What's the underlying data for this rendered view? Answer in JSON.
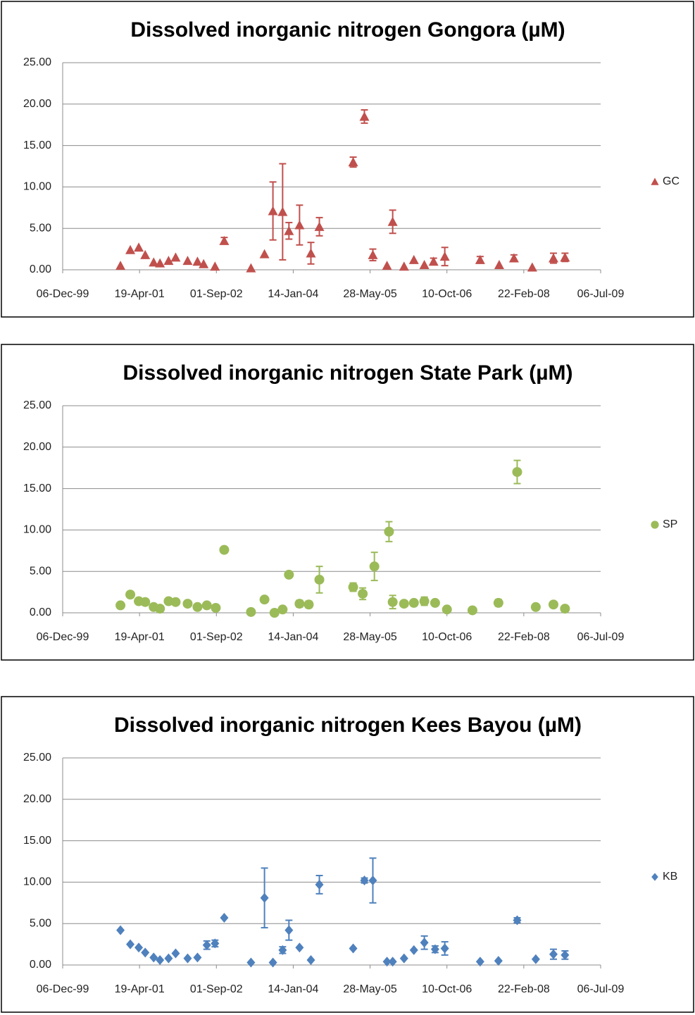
{
  "chart_data": [
    {
      "type": "scatter",
      "title": "Dissolved inorganic nitrogen Gongora (µM)",
      "x": [
        "2000-12-16",
        "2001-02-18",
        "2001-04-14",
        "2001-05-26",
        "2001-07-20",
        "2001-08-30",
        "2001-10-25",
        "2001-12-10",
        "2002-02-26",
        "2002-05-01",
        "2002-06-10",
        "2002-08-23",
        "2002-10-22",
        "2003-04-14",
        "2003-07-11",
        "2003-09-04",
        "2003-11-06",
        "2003-12-17",
        "2004-02-24",
        "2004-05-08",
        "2004-07-02",
        "2005-02-07",
        "2005-04-21",
        "2005-06-15",
        "2005-09-15",
        "2005-10-22",
        "2006-01-04",
        "2006-03-09",
        "2006-05-16",
        "2006-07-15",
        "2006-09-26",
        "2007-05-14",
        "2007-09-15",
        "2007-12-20",
        "2008-04-17",
        "2008-09-02",
        "2008-11-16"
      ],
      "series": [
        {
          "name": "GC",
          "color": "#c0504d",
          "marker": "triangle",
          "values": [
            0.5,
            2.4,
            2.7,
            1.8,
            0.9,
            0.8,
            1.1,
            1.5,
            1.1,
            1.0,
            0.7,
            0.4,
            3.5,
            0.2,
            1.9,
            7.1,
            7.0,
            4.7,
            5.4,
            2.0,
            5.2,
            13.0,
            18.5,
            1.8,
            0.5,
            5.8,
            0.4,
            1.2,
            0.6,
            1.0,
            1.6,
            1.2,
            0.6,
            1.4,
            0.3,
            1.4,
            1.5
          ],
          "errors": [
            null,
            null,
            null,
            null,
            null,
            null,
            null,
            null,
            null,
            null,
            null,
            null,
            0.4,
            null,
            null,
            3.5,
            5.8,
            1.0,
            2.4,
            1.3,
            1.1,
            0.6,
            0.8,
            0.7,
            null,
            1.4,
            null,
            null,
            null,
            0.4,
            1.1,
            0.4,
            null,
            0.4,
            null,
            0.6,
            0.5
          ]
        }
      ],
      "xlim": [
        "1999-12-06",
        "2009-07-06"
      ],
      "xticks": [
        {
          "value": "1999-12-06",
          "label": "06-Dec-99"
        },
        {
          "value": "2001-04-19",
          "label": "19-Apr-01"
        },
        {
          "value": "2002-09-01",
          "label": "01-Sep-02"
        },
        {
          "value": "2004-01-14",
          "label": "14-Jan-04"
        },
        {
          "value": "2005-05-28",
          "label": "28-May-05"
        },
        {
          "value": "2006-10-10",
          "label": "10-Oct-06"
        },
        {
          "value": "2008-02-22",
          "label": "22-Feb-08"
        },
        {
          "value": "2009-07-06",
          "label": "06-Jul-09"
        }
      ],
      "ylim": [
        0,
        25
      ],
      "yticks": [
        {
          "value": 0,
          "label": "0.00"
        },
        {
          "value": 5,
          "label": "5.00"
        },
        {
          "value": 10,
          "label": "10.00"
        },
        {
          "value": 15,
          "label": "15.00"
        },
        {
          "value": 20,
          "label": "20.00"
        },
        {
          "value": 25,
          "label": "25.00"
        }
      ],
      "grid": true,
      "legend": "right"
    },
    {
      "type": "scatter",
      "title": "Dissolved inorganic nitrogen State Park (µM)",
      "x": [
        "2000-12-16",
        "2001-02-18",
        "2001-04-14",
        "2001-05-26",
        "2001-07-20",
        "2001-08-30",
        "2001-10-25",
        "2001-12-10",
        "2002-02-26",
        "2002-05-01",
        "2002-07-01",
        "2002-08-28",
        "2002-10-22",
        "2003-04-14",
        "2003-07-11",
        "2003-09-14",
        "2003-11-06",
        "2003-12-17",
        "2004-02-24",
        "2004-04-24",
        "2004-07-02",
        "2005-02-07",
        "2005-04-10",
        "2005-06-25",
        "2005-09-28",
        "2005-10-22",
        "2006-01-04",
        "2006-03-09",
        "2006-05-16",
        "2006-07-25",
        "2006-10-10",
        "2007-03-25",
        "2007-09-10",
        "2008-01-10",
        "2008-05-10",
        "2008-09-02",
        "2008-11-16"
      ],
      "series": [
        {
          "name": "SP",
          "color": "#9bbb59",
          "marker": "circle",
          "values": [
            0.9,
            2.2,
            1.4,
            1.3,
            0.7,
            0.5,
            1.4,
            1.3,
            1.1,
            0.7,
            0.9,
            0.6,
            7.6,
            0.1,
            1.6,
            0.0,
            0.4,
            4.6,
            1.1,
            1.0,
            4.0,
            3.1,
            2.3,
            5.6,
            9.8,
            1.3,
            1.1,
            1.2,
            1.4,
            1.2,
            0.4,
            0.3,
            1.2,
            17.0,
            0.7,
            1.0,
            0.5
          ],
          "errors": [
            null,
            null,
            null,
            null,
            null,
            null,
            null,
            null,
            null,
            null,
            null,
            null,
            null,
            null,
            null,
            null,
            null,
            null,
            0.4,
            0.4,
            1.6,
            0.5,
            0.7,
            1.7,
            1.2,
            0.8,
            null,
            null,
            0.5,
            null,
            null,
            null,
            0.4,
            1.4,
            null,
            null,
            null
          ]
        }
      ],
      "xlim": [
        "1999-12-06",
        "2009-07-06"
      ],
      "xticks": [
        {
          "value": "1999-12-06",
          "label": "06-Dec-99"
        },
        {
          "value": "2001-04-19",
          "label": "19-Apr-01"
        },
        {
          "value": "2002-09-01",
          "label": "01-Sep-02"
        },
        {
          "value": "2004-01-14",
          "label": "14-Jan-04"
        },
        {
          "value": "2005-05-28",
          "label": "28-May-05"
        },
        {
          "value": "2006-10-10",
          "label": "10-Oct-06"
        },
        {
          "value": "2008-02-22",
          "label": "22-Feb-08"
        },
        {
          "value": "2009-07-06",
          "label": "06-Jul-09"
        }
      ],
      "ylim": [
        0,
        25
      ],
      "yticks": [
        {
          "value": 0,
          "label": "0.00"
        },
        {
          "value": 5,
          "label": "5.00"
        },
        {
          "value": 10,
          "label": "10.00"
        },
        {
          "value": 15,
          "label": "15.00"
        },
        {
          "value": 20,
          "label": "20.00"
        },
        {
          "value": 25,
          "label": "25.00"
        }
      ],
      "grid": true,
      "legend": "right"
    },
    {
      "type": "scatter",
      "title": "Dissolved inorganic nitrogen Kees Bayou (µM)",
      "x": [
        "2000-12-16",
        "2001-02-18",
        "2001-04-14",
        "2001-05-26",
        "2001-07-20",
        "2001-08-30",
        "2001-10-25",
        "2001-12-10",
        "2002-02-26",
        "2002-05-01",
        "2002-07-01",
        "2002-08-23",
        "2002-10-22",
        "2003-04-14",
        "2003-07-11",
        "2003-09-04",
        "2003-11-06",
        "2003-12-17",
        "2004-02-24",
        "2004-05-08",
        "2004-07-02",
        "2005-02-07",
        "2005-04-21",
        "2005-06-15",
        "2005-09-15",
        "2005-10-22",
        "2006-01-04",
        "2006-03-09",
        "2006-05-16",
        "2006-07-25",
        "2006-09-26",
        "2007-05-14",
        "2007-09-10",
        "2008-01-10",
        "2008-05-10",
        "2008-09-02",
        "2008-11-16"
      ],
      "series": [
        {
          "name": "KB",
          "color": "#4f81bd",
          "marker": "diamond",
          "values": [
            4.2,
            2.5,
            2.1,
            1.5,
            0.9,
            0.6,
            0.8,
            1.4,
            0.8,
            0.9,
            2.4,
            2.6,
            5.7,
            0.3,
            8.1,
            0.3,
            1.8,
            4.2,
            2.1,
            0.6,
            9.7,
            2.0,
            10.2,
            10.2,
            0.4,
            0.4,
            0.8,
            1.8,
            2.7,
            1.9,
            2.0,
            0.4,
            0.5,
            5.4,
            0.7,
            1.3,
            1.2
          ],
          "errors": [
            null,
            null,
            null,
            null,
            null,
            null,
            null,
            null,
            null,
            null,
            0.5,
            0.4,
            null,
            null,
            3.6,
            null,
            0.4,
            1.2,
            null,
            null,
            1.1,
            null,
            0.3,
            2.7,
            null,
            null,
            null,
            null,
            0.8,
            0.4,
            0.8,
            null,
            null,
            0.3,
            null,
            0.6,
            0.5
          ]
        }
      ],
      "xlim": [
        "1999-12-06",
        "2009-07-06"
      ],
      "xticks": [
        {
          "value": "1999-12-06",
          "label": "06-Dec-99"
        },
        {
          "value": "2001-04-19",
          "label": "19-Apr-01"
        },
        {
          "value": "2002-09-01",
          "label": "01-Sep-02"
        },
        {
          "value": "2004-01-14",
          "label": "14-Jan-04"
        },
        {
          "value": "2005-05-28",
          "label": "28-May-05"
        },
        {
          "value": "2006-10-10",
          "label": "10-Oct-06"
        },
        {
          "value": "2008-02-22",
          "label": "22-Feb-08"
        },
        {
          "value": "2009-07-06",
          "label": "06-Jul-09"
        }
      ],
      "ylim": [
        0,
        25
      ],
      "yticks": [
        {
          "value": 0,
          "label": "0.00"
        },
        {
          "value": 5,
          "label": "5.00"
        },
        {
          "value": 10,
          "label": "10.00"
        },
        {
          "value": 15,
          "label": "15.00"
        },
        {
          "value": 20,
          "label": "20.00"
        },
        {
          "value": 25,
          "label": "25.00"
        }
      ],
      "grid": true,
      "legend": "right"
    }
  ]
}
